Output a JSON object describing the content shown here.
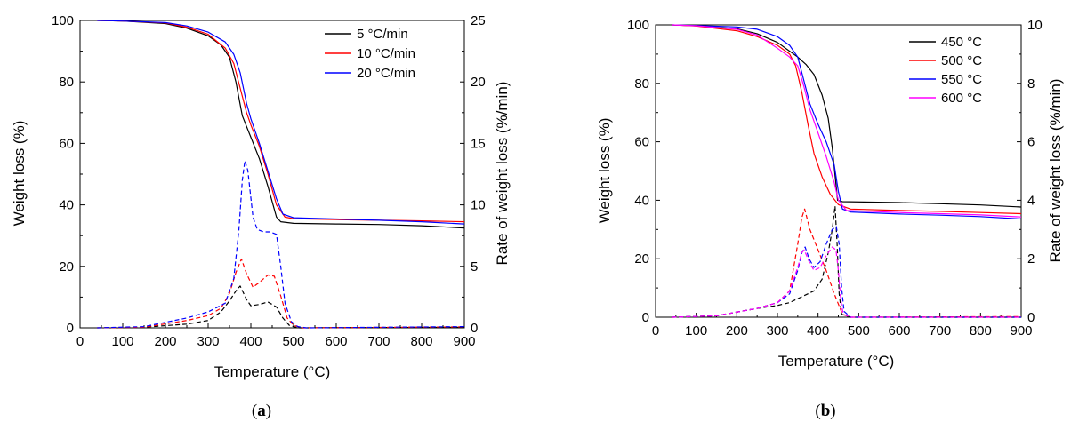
{
  "chart_data": [
    {
      "type": "line",
      "caption_open": "(",
      "caption_letter": "a",
      "caption_close": ")",
      "xlabel": "Temperature (°C)",
      "ylabel": "Weight loss (%)",
      "y2label": "Rate of weight loss (%/min)",
      "xlim": [
        0,
        900
      ],
      "ylim": [
        0,
        100
      ],
      "y2lim": [
        0,
        25
      ],
      "xticks": [
        "0",
        "100",
        "200",
        "300",
        "400",
        "500",
        "600",
        "700",
        "800",
        "900"
      ],
      "yticks": [
        "0",
        "20",
        "40",
        "60",
        "80",
        "100"
      ],
      "y2ticks": [
        "0",
        "5",
        "10",
        "15",
        "20",
        "25"
      ],
      "legend_position": "top-right",
      "series": [
        {
          "name": "5 °C/min",
          "color": "#000000",
          "weight_loss": [
            [
              40,
              100
            ],
            [
              100,
              99.8
            ],
            [
              200,
              99
            ],
            [
              250,
              97.5
            ],
            [
              300,
              95
            ],
            [
              330,
              92
            ],
            [
              350,
              88
            ],
            [
              365,
              80
            ],
            [
              380,
              69
            ],
            [
              400,
              62
            ],
            [
              420,
              55
            ],
            [
              440,
              46
            ],
            [
              460,
              36
            ],
            [
              470,
              34.5
            ],
            [
              500,
              34
            ],
            [
              600,
              33.8
            ],
            [
              700,
              33.6
            ],
            [
              800,
              33.2
            ],
            [
              900,
              32.5
            ]
          ],
          "rate": [
            [
              40,
              0
            ],
            [
              150,
              0.05
            ],
            [
              250,
              0.3
            ],
            [
              300,
              0.6
            ],
            [
              330,
              1.3
            ],
            [
              350,
              2.2
            ],
            [
              365,
              3.0
            ],
            [
              375,
              3.4
            ],
            [
              390,
              2.3
            ],
            [
              400,
              1.8
            ],
            [
              420,
              1.9
            ],
            [
              440,
              2.1
            ],
            [
              460,
              1.7
            ],
            [
              475,
              0.8
            ],
            [
              490,
              0.2
            ],
            [
              510,
              0
            ],
            [
              900,
              0.05
            ]
          ]
        },
        {
          "name": "10 °C/min",
          "color": "#ff0000",
          "weight_loss": [
            [
              40,
              100
            ],
            [
              100,
              99.8
            ],
            [
              200,
              99.2
            ],
            [
              250,
              97.8
            ],
            [
              300,
              95.5
            ],
            [
              340,
              91
            ],
            [
              360,
              86
            ],
            [
              375,
              78
            ],
            [
              390,
              70
            ],
            [
              400,
              66
            ],
            [
              420,
              59
            ],
            [
              440,
              50
            ],
            [
              460,
              40
            ],
            [
              480,
              36
            ],
            [
              500,
              35.5
            ],
            [
              600,
              35.2
            ],
            [
              700,
              35
            ],
            [
              800,
              34.8
            ],
            [
              900,
              34.5
            ]
          ],
          "rate": [
            [
              40,
              0
            ],
            [
              150,
              0.05
            ],
            [
              250,
              0.6
            ],
            [
              300,
              1.0
            ],
            [
              330,
              1.6
            ],
            [
              350,
              2.8
            ],
            [
              365,
              4.5
            ],
            [
              378,
              5.6
            ],
            [
              390,
              4.4
            ],
            [
              405,
              3.3
            ],
            [
              420,
              3.7
            ],
            [
              440,
              4.3
            ],
            [
              455,
              4.2
            ],
            [
              470,
              2.6
            ],
            [
              485,
              0.8
            ],
            [
              500,
              0.2
            ],
            [
              520,
              0
            ],
            [
              900,
              0.08
            ]
          ]
        },
        {
          "name": "20 °C/min",
          "color": "#0000ff",
          "weight_loss": [
            [
              40,
              100
            ],
            [
              100,
              99.8
            ],
            [
              200,
              99.3
            ],
            [
              250,
              98.2
            ],
            [
              300,
              96.2
            ],
            [
              340,
              93
            ],
            [
              360,
              89
            ],
            [
              375,
              83
            ],
            [
              390,
              73
            ],
            [
              400,
              68
            ],
            [
              420,
              60
            ],
            [
              440,
              51
            ],
            [
              460,
              42
            ],
            [
              475,
              37
            ],
            [
              500,
              35.8
            ],
            [
              600,
              35.4
            ],
            [
              700,
              35
            ],
            [
              800,
              34.5
            ],
            [
              900,
              33.8
            ]
          ],
          "rate": [
            [
              40,
              0
            ],
            [
              150,
              0.1
            ],
            [
              250,
              0.8
            ],
            [
              300,
              1.3
            ],
            [
              340,
              2.0
            ],
            [
              360,
              4.0
            ],
            [
              372,
              8.0
            ],
            [
              380,
              12.0
            ],
            [
              386,
              13.6
            ],
            [
              393,
              12.8
            ],
            [
              405,
              9.0
            ],
            [
              415,
              8.0
            ],
            [
              430,
              7.8
            ],
            [
              445,
              7.8
            ],
            [
              460,
              7.6
            ],
            [
              470,
              5.0
            ],
            [
              480,
              2.0
            ],
            [
              495,
              0.5
            ],
            [
              510,
              0.1
            ],
            [
              530,
              0
            ],
            [
              900,
              0.1
            ]
          ]
        }
      ]
    },
    {
      "type": "line",
      "caption_open": "(",
      "caption_letter": "b",
      "caption_close": ")",
      "xlabel": "Temperature (°C)",
      "ylabel": "Weight loss (%)",
      "y2label": "Rate of weight loss (%/min)",
      "xlim": [
        0,
        900
      ],
      "ylim": [
        0,
        100
      ],
      "y2lim": [
        0,
        10
      ],
      "xticks": [
        "0",
        "100",
        "200",
        "300",
        "400",
        "500",
        "600",
        "700",
        "800",
        "900"
      ],
      "yticks": [
        "0",
        "20",
        "40",
        "60",
        "80",
        "100"
      ],
      "y2ticks": [
        "0",
        "2",
        "4",
        "6",
        "8",
        "10"
      ],
      "legend_position": "top-right",
      "series": [
        {
          "name": "450 °C",
          "color": "#000000",
          "weight_loss": [
            [
              40,
              100
            ],
            [
              100,
              99.7
            ],
            [
              200,
              98.7
            ],
            [
              250,
              97
            ],
            [
              300,
              94
            ],
            [
              330,
              91
            ],
            [
              350,
              89
            ],
            [
              370,
              86.5
            ],
            [
              390,
              83
            ],
            [
              410,
              76
            ],
            [
              425,
              68
            ],
            [
              435,
              58
            ],
            [
              443,
              47
            ],
            [
              448,
              40
            ],
            [
              460,
              39.5
            ],
            [
              600,
              39.2
            ],
            [
              700,
              38.8
            ],
            [
              800,
              38.4
            ],
            [
              900,
              37.7
            ]
          ],
          "rate": [
            [
              40,
              0
            ],
            [
              150,
              0.05
            ],
            [
              250,
              0.3
            ],
            [
              300,
              0.4
            ],
            [
              330,
              0.5
            ],
            [
              360,
              0.7
            ],
            [
              390,
              0.9
            ],
            [
              410,
              1.3
            ],
            [
              425,
              2.2
            ],
            [
              435,
              3.0
            ],
            [
              442,
              3.8
            ],
            [
              447,
              2.5
            ],
            [
              452,
              0.8
            ],
            [
              458,
              0.1
            ],
            [
              480,
              0
            ],
            [
              900,
              0
            ]
          ]
        },
        {
          "name": "500 °C",
          "color": "#ff0000",
          "weight_loss": [
            [
              40,
              100
            ],
            [
              100,
              99.6
            ],
            [
              200,
              98
            ],
            [
              250,
              96
            ],
            [
              300,
              93
            ],
            [
              330,
              90
            ],
            [
              345,
              86
            ],
            [
              360,
              77
            ],
            [
              375,
              66
            ],
            [
              390,
              56
            ],
            [
              410,
              48
            ],
            [
              430,
              42
            ],
            [
              450,
              38.5
            ],
            [
              480,
              37
            ],
            [
              600,
              36.5
            ],
            [
              700,
              36.2
            ],
            [
              800,
              35.8
            ],
            [
              900,
              35.4
            ]
          ],
          "rate": [
            [
              40,
              0
            ],
            [
              150,
              0.05
            ],
            [
              250,
              0.3
            ],
            [
              300,
              0.5
            ],
            [
              330,
              0.9
            ],
            [
              350,
              2.5
            ],
            [
              360,
              3.4
            ],
            [
              367,
              3.7
            ],
            [
              380,
              3.0
            ],
            [
              400,
              2.3
            ],
            [
              420,
              1.6
            ],
            [
              440,
              0.8
            ],
            [
              460,
              0.1
            ],
            [
              480,
              0
            ],
            [
              900,
              0.02
            ]
          ]
        },
        {
          "name": "550 °C",
          "color": "#0000ff",
          "weight_loss": [
            [
              40,
              100
            ],
            [
              100,
              99.8
            ],
            [
              200,
              99.3
            ],
            [
              250,
              98.5
            ],
            [
              300,
              96
            ],
            [
              330,
              93
            ],
            [
              350,
              89
            ],
            [
              365,
              81
            ],
            [
              380,
              73
            ],
            [
              400,
              66
            ],
            [
              420,
              60
            ],
            [
              440,
              52
            ],
            [
              450,
              43
            ],
            [
              460,
              37
            ],
            [
              480,
              36
            ],
            [
              600,
              35.3
            ],
            [
              700,
              34.9
            ],
            [
              800,
              34.4
            ],
            [
              900,
              33.6
            ]
          ],
          "rate": [
            [
              40,
              0
            ],
            [
              150,
              0.05
            ],
            [
              250,
              0.3
            ],
            [
              300,
              0.5
            ],
            [
              330,
              0.8
            ],
            [
              350,
              1.6
            ],
            [
              360,
              2.2
            ],
            [
              368,
              2.4
            ],
            [
              378,
              2.0
            ],
            [
              390,
              1.7
            ],
            [
              405,
              1.9
            ],
            [
              420,
              2.5
            ],
            [
              435,
              3.0
            ],
            [
              445,
              3.1
            ],
            [
              452,
              2.5
            ],
            [
              458,
              1.0
            ],
            [
              464,
              0.2
            ],
            [
              480,
              0
            ],
            [
              900,
              0
            ]
          ]
        },
        {
          "name": "600 °C",
          "color": "#ff00ff",
          "weight_loss": [
            [
              40,
              100
            ],
            [
              100,
              99.7
            ],
            [
              200,
              98.5
            ],
            [
              250,
              96.5
            ],
            [
              300,
              92
            ],
            [
              330,
              89
            ],
            [
              350,
              86
            ],
            [
              365,
              79
            ],
            [
              380,
              71
            ],
            [
              400,
              63
            ],
            [
              420,
              55
            ],
            [
              440,
              46
            ],
            [
              450,
              40
            ],
            [
              470,
              36.5
            ],
            [
              600,
              35.8
            ],
            [
              700,
              35.4
            ],
            [
              800,
              35
            ],
            [
              900,
              34.3
            ]
          ],
          "rate": [
            [
              40,
              0
            ],
            [
              150,
              0.05
            ],
            [
              250,
              0.3
            ],
            [
              300,
              0.5
            ],
            [
              330,
              0.9
            ],
            [
              350,
              1.7
            ],
            [
              360,
              2.2
            ],
            [
              366,
              2.3
            ],
            [
              378,
              1.9
            ],
            [
              390,
              1.6
            ],
            [
              405,
              1.7
            ],
            [
              420,
              2.1
            ],
            [
              435,
              2.4
            ],
            [
              444,
              2.3
            ],
            [
              450,
              1.6
            ],
            [
              456,
              0.6
            ],
            [
              462,
              0.1
            ],
            [
              480,
              0
            ],
            [
              900,
              0
            ]
          ]
        }
      ]
    }
  ]
}
